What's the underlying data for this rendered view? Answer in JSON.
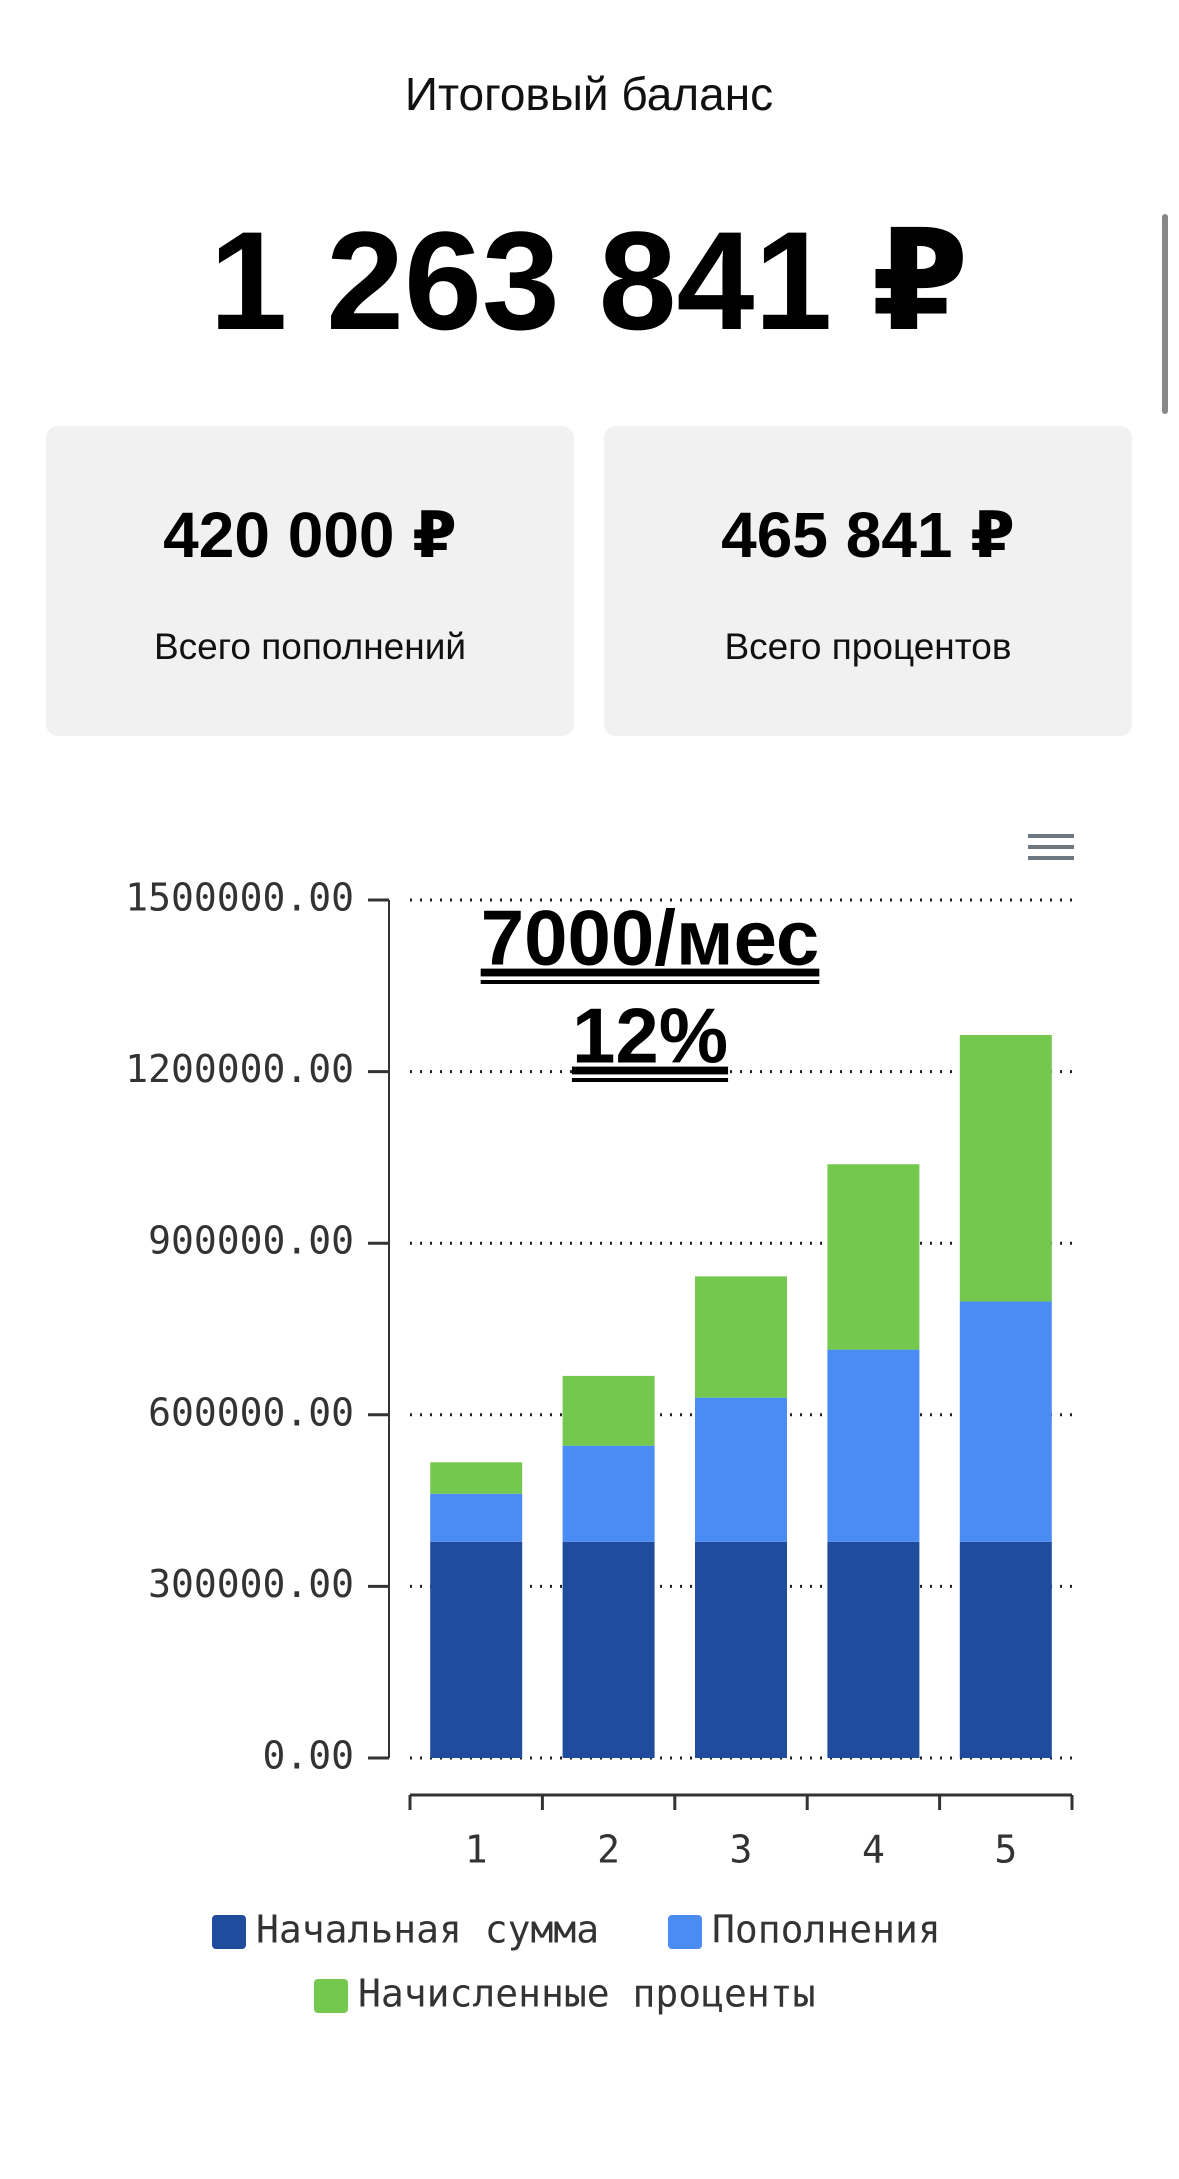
{
  "header": {
    "title": "Итоговый баланс",
    "total": "1 263 841 ₽"
  },
  "cards": [
    {
      "amount": "420 000 ₽",
      "label": "Всего пополнений"
    },
    {
      "amount": "465 841 ₽",
      "label": "Всего процентов"
    }
  ],
  "chart_data": {
    "type": "stacked_bar",
    "annotations": [
      "7000/мес",
      "12%"
    ],
    "categories": [
      "1",
      "2",
      "3",
      "4",
      "5"
    ],
    "series": [
      {
        "name": "Начальная сумма",
        "color": "#1f4c9c",
        "values": [
          378000,
          378000,
          378000,
          378000,
          378000
        ]
      },
      {
        "name": "Пополнения",
        "color": "#4a8cf3",
        "values": [
          84000,
          168000,
          252000,
          336000,
          420000
        ]
      },
      {
        "name": "Начисленные проценты",
        "color": "#74c84e",
        "values": [
          55000,
          122000,
          212000,
          324000,
          466000
        ]
      }
    ],
    "ylim": [
      0,
      1500000
    ],
    "yticks": [
      {
        "value": 0,
        "label": "0.00"
      },
      {
        "value": 300000,
        "label": "300000.00"
      },
      {
        "value": 600000,
        "label": "600000.00"
      },
      {
        "value": 900000,
        "label": "900000.00"
      },
      {
        "value": 1200000,
        "label": "1200000.00"
      },
      {
        "value": 1500000,
        "label": "1500000.00"
      }
    ],
    "grid": true
  }
}
